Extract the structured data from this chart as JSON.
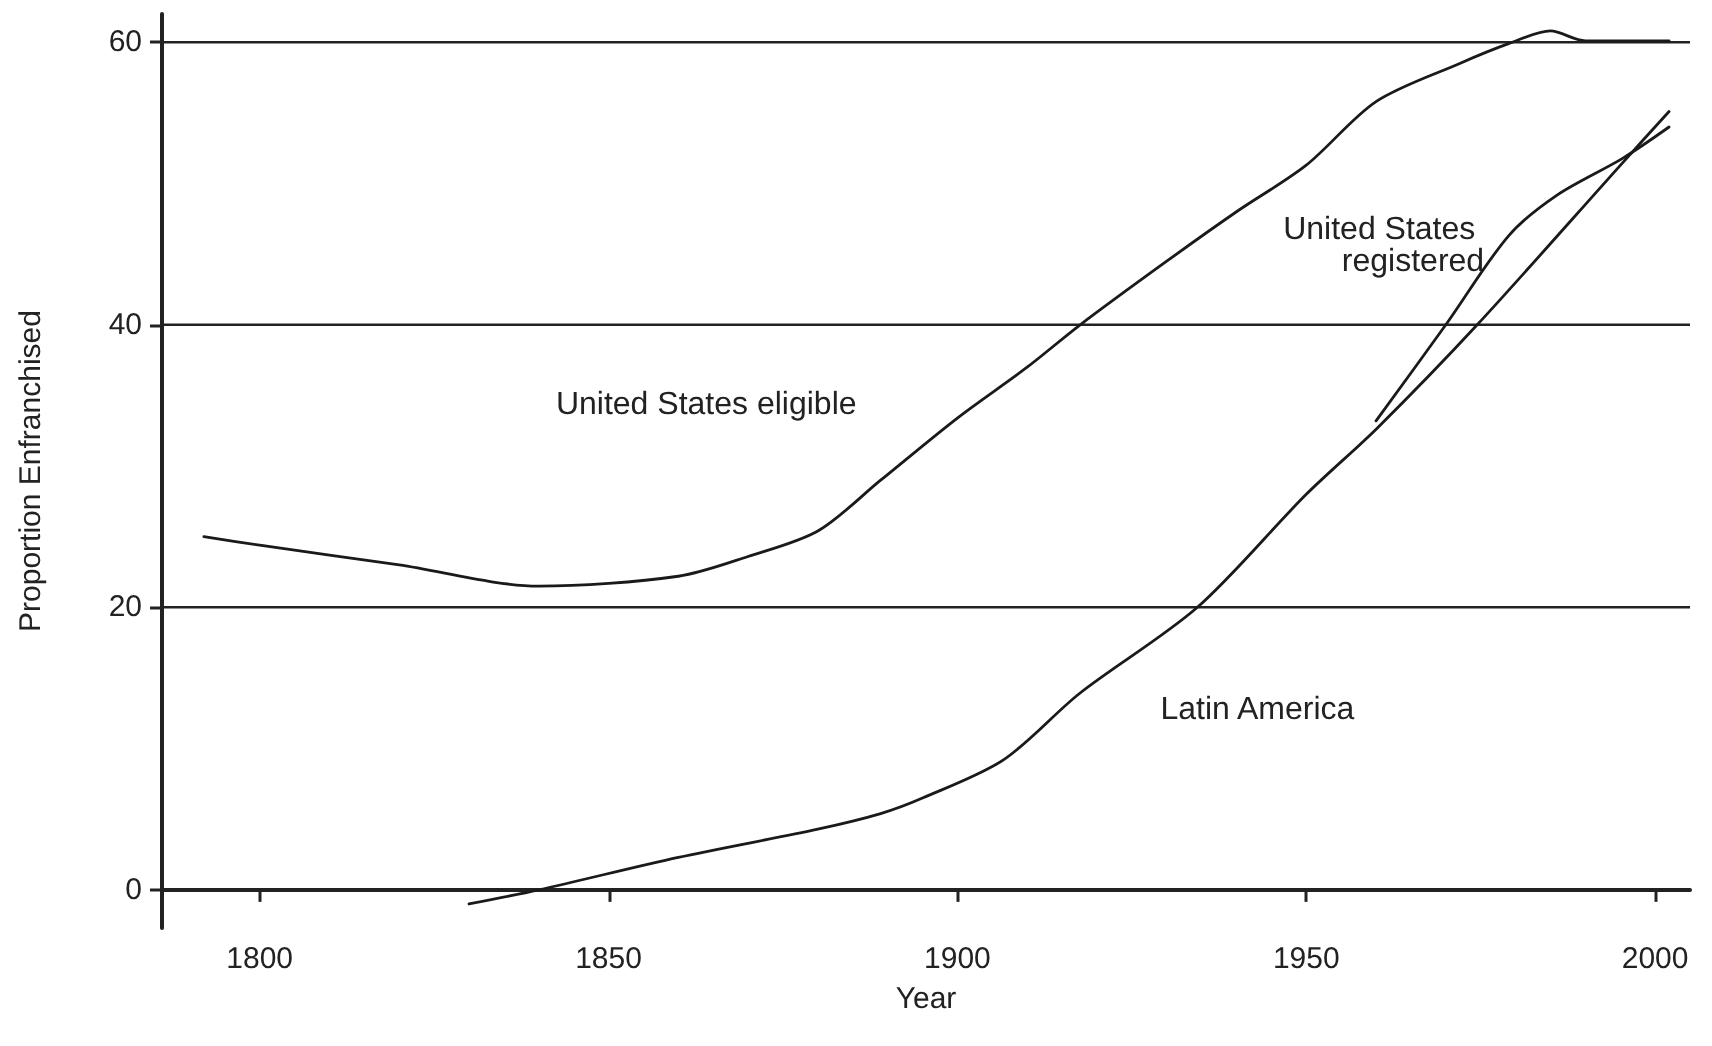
{
  "chart_data": {
    "type": "line",
    "xlabel": "Year",
    "ylabel": "Proportion Enfranchised",
    "xlim": [
      1786,
      2005
    ],
    "ylim": [
      -2.7,
      62
    ],
    "xticks": [
      1800,
      1850,
      1900,
      1950,
      2000
    ],
    "yticks": [
      0,
      20,
      40,
      60
    ],
    "grid": "y",
    "legend": false,
    "marker": "none",
    "line_style": "solid",
    "series": [
      {
        "name": "United States eligible",
        "color": "#1a1a1a",
        "x": [
          1792,
          1800,
          1820,
          1840,
          1860,
          1870,
          1880,
          1889,
          1900,
          1910,
          1917.6,
          1930,
          1940,
          1950,
          1960,
          1972,
          1979,
          1985,
          1990,
          2002
        ],
        "values": [
          25.0,
          24.4,
          23.0,
          21.5,
          22.2,
          23.6,
          25.4,
          29.0,
          33.4,
          37.0,
          40.0,
          44.5,
          48.0,
          51.3,
          55.8,
          58.5,
          59.9,
          60.8,
          60.1,
          60.1
        ]
      },
      {
        "name": "United States registered",
        "color": "#1a1a1a",
        "x": [
          1960,
          1970,
          1979,
          1986,
          1995.4,
          2002
        ],
        "values": [
          33.2,
          40.0,
          46.3,
          49.2,
          51.8,
          54.0
        ]
      },
      {
        "name": "Latin America",
        "color": "#1a1a1a",
        "x": [
          1830,
          1840,
          1860,
          1880,
          1889,
          1895,
          1906.6,
          1917.5,
          1934.4,
          1950,
          1960.2,
          1974.5,
          1995.4,
          2002
        ],
        "values": [
          -1.0,
          0.0,
          2.3,
          4.3,
          5.4,
          6.5,
          9.2,
          13.9,
          20.0,
          28.0,
          32.7,
          40.0,
          51.5,
          55.1
        ]
      }
    ]
  }
}
